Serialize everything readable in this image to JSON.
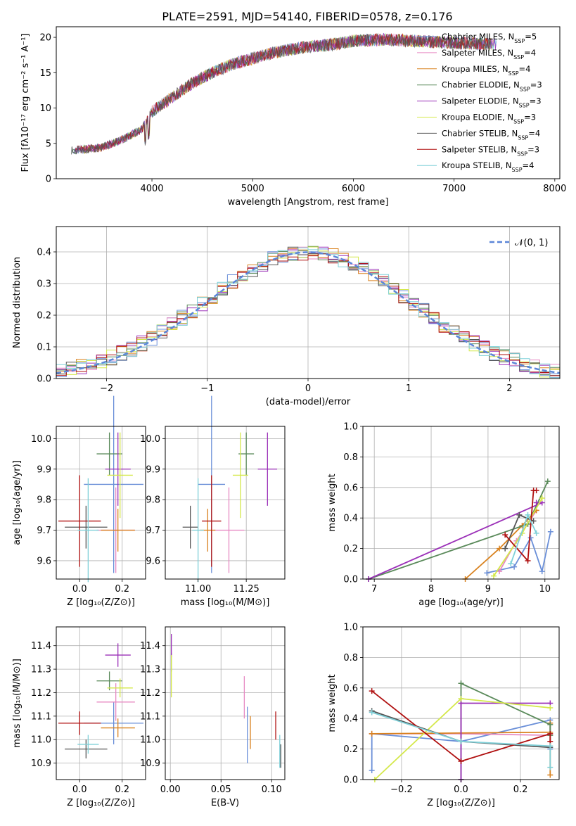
{
  "figure": {
    "title": "PLATE=2591, MJD=54140, FIBERID=0578, z=0.176"
  },
  "chart_data": [
    {
      "id": "spectrum",
      "type": "line",
      "title": "PLATE=2591, MJD=54140, FIBERID=0578, z=0.176",
      "xlabel": "wavelength [Angstrom, rest frame]",
      "ylabel": "Flux [fλ10⁻¹⁷ erg cm⁻² s⁻¹ A⁻¹]",
      "xlim": [
        3050,
        8050
      ],
      "ylim": [
        0,
        21.5
      ],
      "xticks": [
        4000,
        5000,
        6000,
        7000,
        8000
      ],
      "yticks": [
        0,
        5,
        10,
        15,
        20
      ],
      "grid": false,
      "legend_position": "top-right",
      "series": [
        {
          "name": "Chabrier MILES, N_SSP=5",
          "color": "#6a8fd8"
        },
        {
          "name": "Salpeter MILES, N_SSP=4",
          "color": "#e78ac3"
        },
        {
          "name": "Kroupa MILES, N_SSP=4",
          "color": "#d9821f"
        },
        {
          "name": "Chabrier ELODIE, N_SSP=3",
          "color": "#5a8a5a"
        },
        {
          "name": "Salpeter ELODIE, N_SSP=3",
          "color": "#9b30b8"
        },
        {
          "name": "Kroupa ELODIE, N_SSP=3",
          "color": "#d4e84a"
        },
        {
          "name": "Chabrier STELIB, N_SSP=4",
          "color": "#555555"
        },
        {
          "name": "Salpeter STELIB, N_SSP=3",
          "color": "#b01010"
        },
        {
          "name": "Kroupa STELIB, N_SSP=4",
          "color": "#7fd0d8"
        }
      ],
      "continuum": {
        "x": [
          3200,
          3500,
          3700,
          3900,
          4000,
          4200,
          4400,
          4600,
          4800,
          5000,
          5200,
          5500,
          5800,
          6000,
          6300,
          6600,
          7000,
          7400
        ],
        "y": [
          4.0,
          4.4,
          5.5,
          7.0,
          9.5,
          11.5,
          13.5,
          15.0,
          16.2,
          17.0,
          17.8,
          18.6,
          19.0,
          19.5,
          19.7,
          19.5,
          19.2,
          19.0
        ]
      }
    },
    {
      "id": "residuals",
      "type": "step",
      "xlabel": "(data-model)/error",
      "ylabel": "Normed distribution",
      "xlim": [
        -2.5,
        2.5
      ],
      "ylim": [
        0,
        0.48
      ],
      "xticks": [
        -2,
        -1,
        0,
        1,
        2
      ],
      "yticks": [
        0.0,
        0.1,
        0.2,
        0.3,
        0.4
      ],
      "grid": true,
      "bin_width": 0.1,
      "legend": {
        "label": "𝒩(0, 1)",
        "color": "#5b86d8",
        "style": "dashed",
        "position": "top-right"
      }
    },
    {
      "id": "age-vs-z",
      "type": "errorbar",
      "xlabel": "Z [log₁₀(Z/Z⊙)]",
      "ylabel": "age [log₁₀(age/yr)]",
      "xlim": [
        -0.11,
        0.31
      ],
      "ylim": [
        9.54,
        10.04
      ],
      "xticks": [
        0.0,
        0.2
      ],
      "yticks": [
        9.6,
        9.7,
        9.8,
        9.9,
        10.0
      ],
      "grid": true,
      "points": [
        {
          "x": 0.16,
          "y": 9.85,
          "xerr": 0.14,
          "yerr": 0.29,
          "color": "#6a8fd8"
        },
        {
          "x": 0.17,
          "y": 9.7,
          "xerr": 0.09,
          "yerr": 0.14,
          "color": "#e78ac3"
        },
        {
          "x": 0.18,
          "y": 9.7,
          "xerr": 0.08,
          "yerr": 0.07,
          "color": "#d9821f"
        },
        {
          "x": 0.14,
          "y": 9.95,
          "xerr": 0.06,
          "yerr": 0.07,
          "color": "#5a8a5a"
        },
        {
          "x": 0.18,
          "y": 9.9,
          "xerr": 0.06,
          "yerr": 0.12,
          "color": "#9b30b8"
        },
        {
          "x": 0.19,
          "y": 9.88,
          "xerr": 0.06,
          "yerr": 0.14,
          "color": "#d4e84a"
        },
        {
          "x": 0.03,
          "y": 9.71,
          "xerr": 0.1,
          "yerr": 0.07,
          "color": "#555555"
        },
        {
          "x": 0.0,
          "y": 9.73,
          "xerr": 0.1,
          "yerr": 0.15,
          "color": "#b01010"
        },
        {
          "x": 0.04,
          "y": 9.7,
          "xerr": 0.05,
          "yerr": 0.17,
          "color": "#7fd0d8"
        }
      ]
    },
    {
      "id": "age-vs-mass",
      "type": "errorbar",
      "xlabel": "mass [log₁₀(M/M⊙)]",
      "ylabel": "",
      "xlim": [
        10.83,
        11.45
      ],
      "ylim": [
        9.54,
        10.04
      ],
      "xticks": [
        11.0,
        11.25
      ],
      "yticks": [
        9.6,
        9.7,
        9.8,
        9.9,
        10.0
      ],
      "grid": true,
      "points": [
        {
          "x": 11.07,
          "y": 9.85,
          "xerr": 0.07,
          "yerr": 0.29,
          "color": "#6a8fd8"
        },
        {
          "x": 11.16,
          "y": 9.7,
          "xerr": 0.08,
          "yerr": 0.14,
          "color": "#e78ac3"
        },
        {
          "x": 11.05,
          "y": 9.7,
          "xerr": 0.04,
          "yerr": 0.07,
          "color": "#d9821f"
        },
        {
          "x": 11.25,
          "y": 9.95,
          "xerr": 0.04,
          "yerr": 0.07,
          "color": "#5a8a5a"
        },
        {
          "x": 11.36,
          "y": 9.9,
          "xerr": 0.05,
          "yerr": 0.12,
          "color": "#9b30b8"
        },
        {
          "x": 11.22,
          "y": 9.88,
          "xerr": 0.04,
          "yerr": 0.14,
          "color": "#d4e84a"
        },
        {
          "x": 10.96,
          "y": 9.71,
          "xerr": 0.04,
          "yerr": 0.07,
          "color": "#555555"
        },
        {
          "x": 11.07,
          "y": 9.73,
          "xerr": 0.05,
          "yerr": 0.15,
          "color": "#b01010"
        },
        {
          "x": 11.0,
          "y": 9.7,
          "xerr": 0.03,
          "yerr": 0.17,
          "color": "#7fd0d8"
        }
      ]
    },
    {
      "id": "weight-vs-age",
      "type": "line",
      "xlabel": "age [log₁₀(age/yr)]",
      "ylabel": "mass weight",
      "xlim": [
        6.8,
        10.25
      ],
      "ylim": [
        0,
        1.0
      ],
      "xticks": [
        7,
        8,
        9,
        10
      ],
      "yticks": [
        0.0,
        0.2,
        0.4,
        0.6,
        0.8,
        1.0
      ],
      "grid": true,
      "series": [
        {
          "color": "#6a8fd8",
          "x": [
            8.98,
            9.46,
            9.75,
            9.95,
            10.1
          ],
          "y": [
            0.04,
            0.08,
            0.27,
            0.05,
            0.31
          ]
        },
        {
          "color": "#e78ac3",
          "x": [
            9.2,
            9.5,
            9.85
          ],
          "y": [
            0.05,
            0.25,
            0.45
          ]
        },
        {
          "color": "#d9821f",
          "x": [
            8.6,
            9.2,
            9.6,
            9.85
          ],
          "y": [
            0.0,
            0.2,
            0.35,
            0.45
          ]
        },
        {
          "color": "#5a8a5a",
          "x": [
            6.9,
            9.7,
            10.05
          ],
          "y": [
            0.0,
            0.36,
            0.64
          ]
        },
        {
          "color": "#9b30b8",
          "x": [
            6.9,
            9.95,
            9.85
          ],
          "y": [
            0.0,
            0.5,
            0.5
          ]
        },
        {
          "color": "#d4e84a",
          "x": [
            9.1,
            9.6,
            9.95
          ],
          "y": [
            0.02,
            0.3,
            0.53
          ]
        },
        {
          "color": "#555555",
          "x": [
            9.3,
            9.55,
            9.8
          ],
          "y": [
            0.2,
            0.42,
            0.38
          ]
        },
        {
          "color": "#b01010",
          "x": [
            9.3,
            9.7,
            9.8,
            9.85
          ],
          "y": [
            0.29,
            0.12,
            0.58,
            0.58
          ]
        },
        {
          "color": "#7fd0d8",
          "x": [
            9.4,
            9.7,
            9.85
          ],
          "y": [
            0.1,
            0.42,
            0.3
          ]
        }
      ]
    },
    {
      "id": "mass-vs-z",
      "type": "errorbar",
      "xlabel": "Z [log₁₀(Z/Z⊙)]",
      "ylabel": "mass [log₁₀(M/M⊙)]",
      "xlim": [
        -0.11,
        0.31
      ],
      "ylim": [
        10.83,
        11.48
      ],
      "xticks": [
        0.0,
        0.2
      ],
      "yticks": [
        10.9,
        11.0,
        11.1,
        11.2,
        11.3,
        11.4
      ],
      "grid": true,
      "points": [
        {
          "x": 0.16,
          "y": 11.07,
          "xerr": 0.14,
          "yerr": 0.09,
          "color": "#6a8fd8"
        },
        {
          "x": 0.17,
          "y": 11.16,
          "xerr": 0.09,
          "yerr": 0.08,
          "color": "#e78ac3"
        },
        {
          "x": 0.18,
          "y": 11.05,
          "xerr": 0.08,
          "yerr": 0.04,
          "color": "#d9821f"
        },
        {
          "x": 0.14,
          "y": 11.25,
          "xerr": 0.06,
          "yerr": 0.04,
          "color": "#5a8a5a"
        },
        {
          "x": 0.18,
          "y": 11.36,
          "xerr": 0.06,
          "yerr": 0.05,
          "color": "#9b30b8"
        },
        {
          "x": 0.19,
          "y": 11.22,
          "xerr": 0.06,
          "yerr": 0.04,
          "color": "#d4e84a"
        },
        {
          "x": 0.03,
          "y": 10.96,
          "xerr": 0.1,
          "yerr": 0.04,
          "color": "#555555"
        },
        {
          "x": 0.0,
          "y": 11.07,
          "xerr": 0.1,
          "yerr": 0.05,
          "color": "#b01010"
        },
        {
          "x": 0.04,
          "y": 10.98,
          "xerr": 0.05,
          "yerr": 0.04,
          "color": "#7fd0d8"
        }
      ]
    },
    {
      "id": "mass-vs-ebv",
      "type": "errorbar",
      "xlabel": "E(B-V)",
      "ylabel": "",
      "xlim": [
        -0.005,
        0.113
      ],
      "ylim": [
        10.83,
        11.48
      ],
      "xticks": [
        0.0,
        0.05,
        0.1
      ],
      "yticks": [
        10.9,
        11.0,
        11.1,
        11.2,
        11.3,
        11.4
      ],
      "grid": true,
      "points": [
        {
          "x": 0.076,
          "y": 11.02,
          "xerr": 0.0,
          "yerr": 0.12,
          "color": "#6a8fd8"
        },
        {
          "x": 0.073,
          "y": 11.18,
          "xerr": 0.0,
          "yerr": 0.09,
          "color": "#e78ac3"
        },
        {
          "x": 0.079,
          "y": 11.03,
          "xerr": 0.0,
          "yerr": 0.07,
          "color": "#d9821f"
        },
        {
          "x": 0.001,
          "y": 11.33,
          "xerr": 0.0,
          "yerr": 0.04,
          "color": "#5a8a5a"
        },
        {
          "x": 0.001,
          "y": 11.4,
          "xerr": 0.0,
          "yerr": 0.05,
          "color": "#9b30b8"
        },
        {
          "x": 0.001,
          "y": 11.27,
          "xerr": 0.0,
          "yerr": 0.09,
          "color": "#d4e84a"
        },
        {
          "x": 0.109,
          "y": 10.93,
          "xerr": 0.0,
          "yerr": 0.05,
          "color": "#555555"
        },
        {
          "x": 0.104,
          "y": 11.06,
          "xerr": 0.0,
          "yerr": 0.06,
          "color": "#b01010"
        },
        {
          "x": 0.108,
          "y": 10.95,
          "xerr": 0.0,
          "yerr": 0.07,
          "color": "#7fd0d8"
        }
      ]
    },
    {
      "id": "weight-vs-z",
      "type": "line",
      "xlabel": "Z [log₁₀(Z/Z⊙)]",
      "ylabel": "mass weight",
      "xlim": [
        -0.33,
        0.33
      ],
      "ylim": [
        0,
        1.0
      ],
      "xticks": [
        -0.2,
        0.0,
        0.2
      ],
      "yticks": [
        0.0,
        0.2,
        0.4,
        0.6,
        0.8,
        1.0
      ],
      "grid": true,
      "series": [
        {
          "color": "#6a8fd8",
          "x": [
            -0.3,
            -0.3,
            0.0,
            0.3,
            0.3
          ],
          "y": [
            0.06,
            0.3,
            0.25,
            0.39,
            0.2
          ]
        },
        {
          "color": "#e78ac3",
          "x": [
            -0.3,
            0.0,
            0.3
          ],
          "y": [
            0.3,
            0.3,
            0.29
          ]
        },
        {
          "color": "#d9821f",
          "x": [
            -0.3,
            0.3,
            0.3,
            0.3
          ],
          "y": [
            0.3,
            0.31,
            0.37,
            0.03
          ]
        },
        {
          "color": "#5a8a5a",
          "x": [
            0.0,
            0.0,
            0.3,
            0.3
          ],
          "y": [
            0.0,
            0.63,
            0.36,
            0.29
          ]
        },
        {
          "color": "#9b30b8",
          "x": [
            0.0,
            0.0,
            0.3
          ],
          "y": [
            0.0,
            0.5,
            0.5
          ]
        },
        {
          "color": "#d4e84a",
          "x": [
            -0.29,
            0.0,
            0.3
          ],
          "y": [
            0.0,
            0.53,
            0.47
          ]
        },
        {
          "color": "#555555",
          "x": [
            -0.3,
            0.0,
            0.3
          ],
          "y": [
            0.45,
            0.25,
            0.21
          ]
        },
        {
          "color": "#b01010",
          "x": [
            -0.3,
            0.0,
            0.3,
            0.3
          ],
          "y": [
            0.58,
            0.12,
            0.3,
            0.25
          ]
        },
        {
          "color": "#7fd0d8",
          "x": [
            -0.3,
            0.0,
            0.3,
            0.3
          ],
          "y": [
            0.44,
            0.25,
            0.22,
            0.08
          ]
        }
      ]
    }
  ]
}
